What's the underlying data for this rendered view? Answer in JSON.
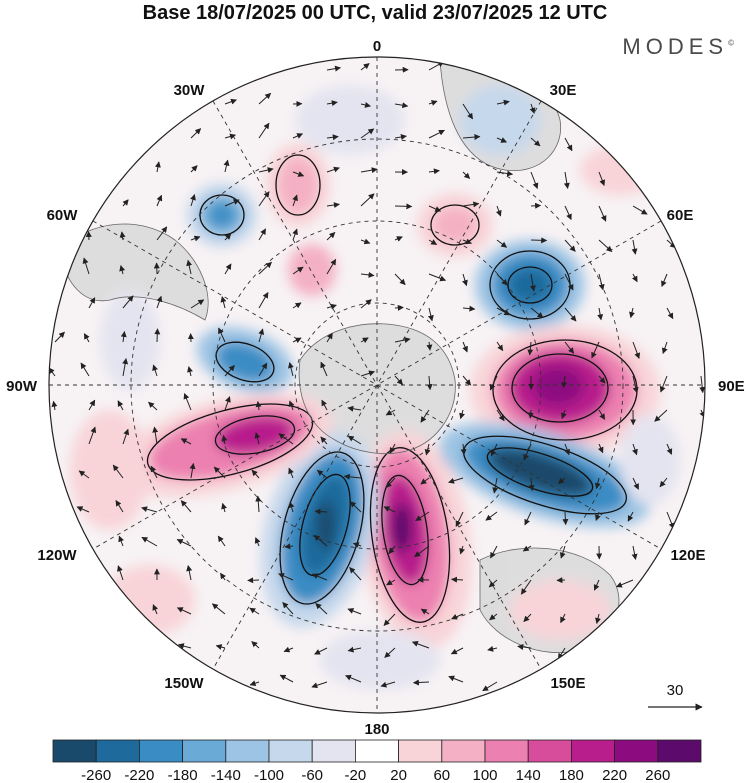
{
  "title": "Base 18/07/2025 00 UTC, valid 23/07/2025 12 UTC",
  "brand": "MODES",
  "brand_mark": "©",
  "map": {
    "projection": "south-polar-stereographic",
    "lon_labels": {
      "top": "0",
      "top_right": "30E",
      "right_upper": "60E",
      "right": "90E",
      "right_lower": "120E",
      "bottom_right": "150E",
      "bottom": "180",
      "bottom_left": "150W",
      "left_lower": "120W",
      "left": "90W",
      "left_upper": "60W",
      "top_left": "30W"
    },
    "vector_reference": "30",
    "anomaly_centers": [
      {
        "sign": "negative",
        "level": -100,
        "region": "near 45W"
      },
      {
        "sign": "positive",
        "level": 100,
        "region": "near 20W"
      },
      {
        "sign": "positive",
        "level": 60,
        "region": "near 30W mid-latitude"
      },
      {
        "sign": "positive",
        "level": 100,
        "region": "near 30E"
      },
      {
        "sign": "negative",
        "level": -180,
        "region": "near 60E"
      },
      {
        "sign": "positive",
        "level": 220,
        "region": "near 90E"
      },
      {
        "sign": "negative",
        "level": -260,
        "region": "near 120E"
      },
      {
        "sign": "positive",
        "level": 220,
        "region": "near 170E"
      },
      {
        "sign": "negative",
        "level": -260,
        "region": "near 160W"
      },
      {
        "sign": "positive",
        "level": 180,
        "region": "near 110W"
      },
      {
        "sign": "negative",
        "level": -140,
        "region": "near 80W"
      }
    ]
  },
  "colorbar": {
    "labels": [
      "-260",
      "-220",
      "-180",
      "-140",
      "-100",
      "-60",
      "-20",
      "20",
      "60",
      "100",
      "140",
      "180",
      "220",
      "260"
    ],
    "colors": [
      "#1a4a6b",
      "#1f6a9c",
      "#3a8cc4",
      "#6aaad6",
      "#9dc4e4",
      "#c6d8ec",
      "#e4e4f0",
      "#ffffff",
      "#f8d4d8",
      "#f4b0c4",
      "#ec80b0",
      "#d84c9c",
      "#b81e8c",
      "#8c0c80",
      "#5c0a6c"
    ]
  }
}
